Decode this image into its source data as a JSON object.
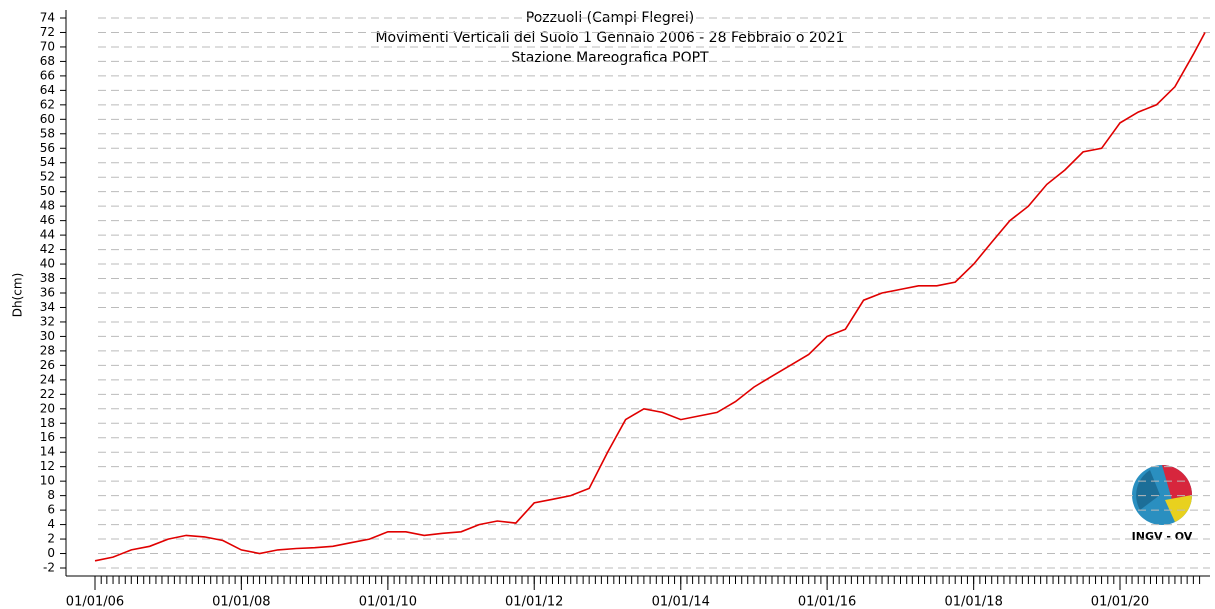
{
  "chart_data": {
    "type": "line",
    "title_lines": [
      "Pozzuoli (Campi Flegrei)",
      "Movimenti Verticali del Suolo 1 Gennaio 2006 - 28 Febbraio o 2021",
      "Stazione Mareografica POPT"
    ],
    "y_label": "Dh(cm)",
    "logo_text": "INGV - OV",
    "x": [
      "01/01/06",
      "01/04/06",
      "01/07/06",
      "01/10/06",
      "01/01/07",
      "01/04/07",
      "01/07/07",
      "01/10/07",
      "01/01/08",
      "01/04/08",
      "01/07/08",
      "01/10/08",
      "01/01/09",
      "01/04/09",
      "01/07/09",
      "01/10/09",
      "01/01/10",
      "01/04/10",
      "01/07/10",
      "01/10/10",
      "01/01/11",
      "01/04/11",
      "01/07/11",
      "01/10/11",
      "01/01/12",
      "01/04/12",
      "01/07/12",
      "01/10/12",
      "01/01/13",
      "01/04/13",
      "01/07/13",
      "01/10/13",
      "01/01/14",
      "01/04/14",
      "01/07/14",
      "01/10/14",
      "01/01/15",
      "01/04/15",
      "01/07/15",
      "01/10/15",
      "01/01/16",
      "01/04/16",
      "01/07/16",
      "01/10/16",
      "01/01/17",
      "01/04/17",
      "01/07/17",
      "01/10/17",
      "01/01/18",
      "01/04/18",
      "01/07/18",
      "01/10/18",
      "01/01/19",
      "01/04/19",
      "01/07/19",
      "01/10/19",
      "01/01/20",
      "01/04/20",
      "01/07/20",
      "01/10/20",
      "01/01/21",
      "28/02/21"
    ],
    "values": [
      -1,
      -0.5,
      0.5,
      1,
      2,
      2.5,
      2.3,
      1.8,
      0.5,
      0,
      0.5,
      0.7,
      0.8,
      1,
      1.5,
      2,
      3,
      3,
      2.5,
      2.8,
      3,
      4,
      4.5,
      4.2,
      7,
      7.5,
      8,
      9,
      14,
      18.5,
      20,
      19.5,
      18.5,
      19,
      19.5,
      21,
      23,
      24.5,
      26,
      27.5,
      30,
      31,
      35,
      36,
      36.5,
      37,
      37,
      37.5,
      40,
      43,
      46,
      48,
      51,
      53,
      55.5,
      56,
      59.5,
      61,
      62,
      64.5,
      69,
      72
    ],
    "color": "#e00000",
    "xlim": [
      "01/01/06",
      "28/02/21"
    ],
    "xticks": [
      "01/01/06",
      "01/01/08",
      "01/01/10",
      "01/01/12",
      "01/01/14",
      "01/01/16",
      "01/01/18",
      "01/01/20"
    ],
    "ylim": [
      -2,
      74
    ],
    "yticks": [
      -2,
      0,
      2,
      4,
      6,
      8,
      10,
      12,
      14,
      16,
      18,
      20,
      22,
      24,
      26,
      28,
      30,
      32,
      34,
      36,
      38,
      40,
      42,
      44,
      46,
      48,
      50,
      52,
      54,
      56,
      58,
      60,
      62,
      64,
      66,
      68,
      70,
      72,
      74
    ],
    "grid": true
  }
}
